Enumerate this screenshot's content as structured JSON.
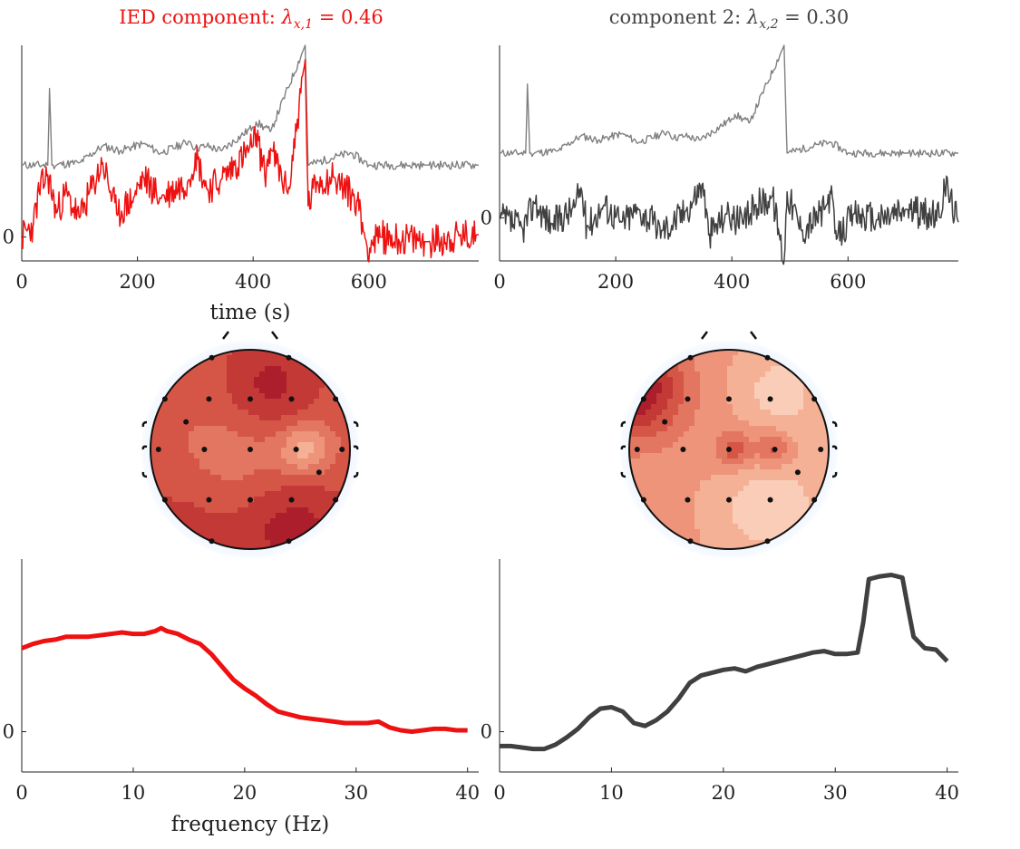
{
  "colors": {
    "ied": "#ee1111",
    "comp2": "#404040",
    "raw": "#808080",
    "axis": "#222222"
  },
  "titles": {
    "left": {
      "prefix": "IED component: ",
      "symbol": "λ",
      "sub": "x,1",
      "value": " = 0.46"
    },
    "right": {
      "prefix": "component 2: ",
      "symbol": "λ",
      "sub": "x,2",
      "value": " = 0.30"
    }
  },
  "chart_data": [
    {
      "type": "line",
      "xlabel": "time (s)",
      "xticks": [
        "0",
        "200",
        "400",
        "600"
      ],
      "yticks": [
        "0"
      ],
      "xlim": [
        0,
        800
      ],
      "series": [
        {
          "values_note": "raw trace",
          "x": [
            0,
            45,
            48,
            52,
            100,
            140,
            170,
            210,
            240,
            290,
            300,
            320,
            345,
            400,
            405,
            430,
            490,
            495,
            550,
            570,
            600,
            700,
            790
          ],
          "y": [
            3.0,
            3.0,
            6.2,
            3.0,
            3.1,
            3.8,
            3.6,
            3.9,
            3.5,
            4.0,
            3.7,
            3.8,
            3.6,
            4.6,
            4.8,
            4.4,
            8.0,
            3.0,
            3.4,
            3.5,
            3.0,
            3.0,
            3.0
          ]
        },
        {
          "values_note": "component trace",
          "x": [
            0,
            20,
            30,
            45,
            60,
            75,
            100,
            140,
            165,
            195,
            210,
            240,
            290,
            300,
            320,
            345,
            400,
            405,
            420,
            430,
            460,
            490,
            495,
            510,
            540,
            580,
            597,
            620,
            700,
            790
          ],
          "y": [
            0.0,
            0.5,
            1.9,
            2.6,
            1.0,
            1.8,
            0.8,
            3.1,
            0.9,
            1.7,
            2.5,
            1.6,
            2.4,
            3.5,
            2.0,
            2.4,
            3.8,
            4.3,
            2.6,
            3.7,
            1.8,
            7.4,
            1.3,
            2.3,
            2.5,
            1.5,
            -0.4,
            0.0,
            -0.2,
            0.1
          ]
        }
      ]
    },
    {
      "type": "line",
      "xticks": [
        "0",
        "200",
        "400",
        "600"
      ],
      "yticks": [
        "0"
      ],
      "xlim": [
        0,
        800
      ],
      "series": [
        {
          "x": [
            0,
            45,
            48,
            52,
            100,
            140,
            170,
            210,
            240,
            290,
            300,
            320,
            345,
            400,
            405,
            430,
            490,
            495,
            550,
            570,
            600,
            700,
            790
          ],
          "y": [
            3.0,
            3.0,
            6.2,
            3.0,
            3.1,
            3.8,
            3.6,
            3.9,
            3.5,
            4.0,
            3.7,
            3.8,
            3.6,
            4.6,
            4.8,
            4.4,
            8.0,
            3.0,
            3.4,
            3.5,
            3.0,
            3.0,
            3.0
          ]
        },
        {
          "x": [
            0,
            40,
            60,
            90,
            130,
            140,
            150,
            180,
            210,
            240,
            280,
            320,
            350,
            360,
            390,
            420,
            440,
            470,
            480,
            490,
            495,
            520,
            560,
            570,
            580,
            610,
            650,
            700,
            760,
            765,
            790
          ],
          "y": [
            0.0,
            -0.5,
            0.7,
            -0.3,
            0.5,
            1.4,
            -0.4,
            0.6,
            -0.2,
            0.4,
            -0.6,
            0.3,
            1.6,
            -0.8,
            0.2,
            -0.3,
            0.6,
            1.0,
            -0.5,
            -2.0,
            1.2,
            -0.6,
            0.4,
            1.1,
            -1.0,
            0.2,
            -0.1,
            0.4,
            0.0,
            1.8,
            -0.2
          ]
        }
      ]
    },
    {
      "type": "line",
      "xlabel": "frequency (Hz)",
      "xticks": [
        "0",
        "10",
        "20",
        "30",
        "40"
      ],
      "yticks": [
        "0"
      ],
      "xlim": [
        0,
        41
      ],
      "x": [
        0,
        1,
        2,
        3,
        4,
        5,
        6,
        7,
        8,
        9,
        10,
        11,
        12,
        12.5,
        13,
        14,
        15,
        16,
        17,
        18,
        19,
        20,
        21,
        22,
        23,
        24,
        25,
        26,
        27,
        28,
        29,
        30,
        31,
        32,
        33,
        34,
        35,
        36,
        37,
        38,
        39,
        40
      ],
      "y": [
        2.9,
        3.05,
        3.15,
        3.2,
        3.3,
        3.3,
        3.3,
        3.35,
        3.4,
        3.45,
        3.4,
        3.4,
        3.5,
        3.6,
        3.5,
        3.4,
        3.2,
        3.05,
        2.7,
        2.25,
        1.8,
        1.5,
        1.25,
        0.95,
        0.7,
        0.6,
        0.5,
        0.45,
        0.4,
        0.35,
        0.3,
        0.3,
        0.3,
        0.35,
        0.15,
        0.05,
        0.0,
        0.05,
        0.1,
        0.1,
        0.05,
        0.05
      ]
    },
    {
      "type": "line",
      "xticks": [
        "0",
        "10",
        "20",
        "30",
        "40"
      ],
      "yticks": [
        "0"
      ],
      "xlim": [
        0,
        41
      ],
      "x": [
        0,
        1,
        2,
        3,
        4,
        5,
        6,
        7,
        8,
        9,
        10,
        11,
        12,
        13,
        14,
        15,
        16,
        17,
        18,
        19,
        20,
        21,
        22,
        23,
        24,
        25,
        26,
        27,
        28,
        29,
        30,
        31,
        32,
        32.5,
        33,
        34,
        35,
        36,
        36.5,
        37,
        38,
        39,
        40
      ],
      "y": [
        -0.5,
        -0.5,
        -0.55,
        -0.6,
        -0.6,
        -0.45,
        -0.2,
        0.1,
        0.5,
        0.8,
        0.85,
        0.7,
        0.3,
        0.2,
        0.4,
        0.7,
        1.15,
        1.7,
        1.95,
        2.05,
        2.15,
        2.2,
        2.1,
        2.25,
        2.35,
        2.45,
        2.55,
        2.65,
        2.75,
        2.8,
        2.7,
        2.7,
        2.75,
        3.8,
        5.3,
        5.4,
        5.45,
        5.35,
        4.3,
        3.3,
        2.9,
        2.85,
        2.45
      ]
    }
  ],
  "topomaps": [
    {
      "name": "IED component topography"
    },
    {
      "name": "component 2 topography"
    }
  ]
}
